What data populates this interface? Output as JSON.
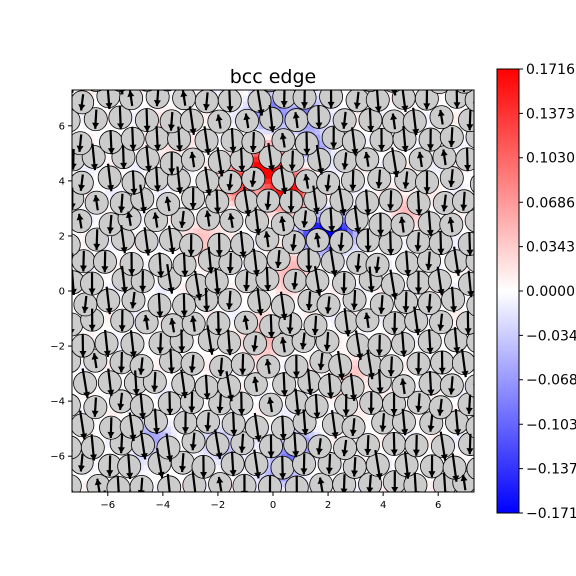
{
  "chart_data": {
    "type": "heatmap",
    "title": "bcc edge",
    "xlim": [
      -7.3,
      7.3
    ],
    "ylim": [
      -7.3,
      7.3
    ],
    "x_ticks": [
      -6,
      -4,
      -2,
      0,
      2,
      4,
      6
    ],
    "y_ticks": [
      -6,
      -4,
      -2,
      0,
      2,
      4,
      6
    ],
    "x_tick_labels": [
      "−6",
      "−4",
      "−2",
      "0",
      "2",
      "4",
      "6"
    ],
    "y_tick_labels": [
      "−6",
      "−4",
      "−2",
      "0",
      "2",
      "4",
      "6"
    ],
    "grid": false,
    "colormap": "bwr",
    "colorbar": {
      "range": [
        -0.1716,
        0.1716
      ],
      "tick_values": [
        0.1716,
        0.1373,
        0.103,
        0.0686,
        0.0343,
        0.0,
        -0.0343,
        -0.0686,
        -0.103,
        -0.1373,
        -0.1716
      ],
      "tick_labels": [
        "0.1716",
        "0.1373",
        "0.1030",
        "0.0686",
        "0.0343",
        "0.0000",
        "−0.0343",
        "−0.0686",
        "−0.1030",
        "−0.1373",
        "−0.1716"
      ]
    },
    "field_hotspots": [
      {
        "x": -0.2,
        "y": 4.6,
        "value": 0.1716,
        "sigma": 0.55
      },
      {
        "x": 0.6,
        "y": 3.6,
        "value": 0.17,
        "sigma": 0.5
      },
      {
        "x": -1.2,
        "y": 4.0,
        "value": 0.12,
        "sigma": 0.5
      },
      {
        "x": 1.6,
        "y": 2.1,
        "value": -0.1716,
        "sigma": 0.45
      },
      {
        "x": 2.4,
        "y": 2.2,
        "value": -0.14,
        "sigma": 0.4
      },
      {
        "x": -0.2,
        "y": 6.5,
        "value": -0.12,
        "sigma": 0.45
      },
      {
        "x": 1.2,
        "y": 6.4,
        "value": -0.1,
        "sigma": 0.4
      },
      {
        "x": 1.5,
        "y": 5.2,
        "value": -0.08,
        "sigma": 0.4
      },
      {
        "x": -0.3,
        "y": -1.7,
        "value": 0.06,
        "sigma": 0.5
      },
      {
        "x": 0.6,
        "y": 0.8,
        "value": 0.06,
        "sigma": 0.5
      },
      {
        "x": -4.5,
        "y": -5.3,
        "value": -0.06,
        "sigma": 0.5
      },
      {
        "x": -1.8,
        "y": -5.6,
        "value": -0.05,
        "sigma": 0.5
      },
      {
        "x": 0.8,
        "y": -5.7,
        "value": -0.1,
        "sigma": 0.45
      },
      {
        "x": 0.2,
        "y": -6.6,
        "value": -0.07,
        "sigma": 0.45
      },
      {
        "x": -2.5,
        "y": 1.8,
        "value": 0.05,
        "sigma": 0.5
      },
      {
        "x": 2.8,
        "y": -3.2,
        "value": 0.04,
        "sigma": 0.5
      },
      {
        "x": 4.8,
        "y": 3.0,
        "value": 0.04,
        "sigma": 0.5
      },
      {
        "x": -3.8,
        "y": 5.6,
        "value": 0.035,
        "sigma": 0.5
      }
    ],
    "lattice": {
      "spacing": 0.9,
      "row_offset": 0.45,
      "atom_radius": 0.42,
      "atom_color": "#cccccc",
      "edge_color": "#000000",
      "arrow_color": "#000000"
    }
  }
}
